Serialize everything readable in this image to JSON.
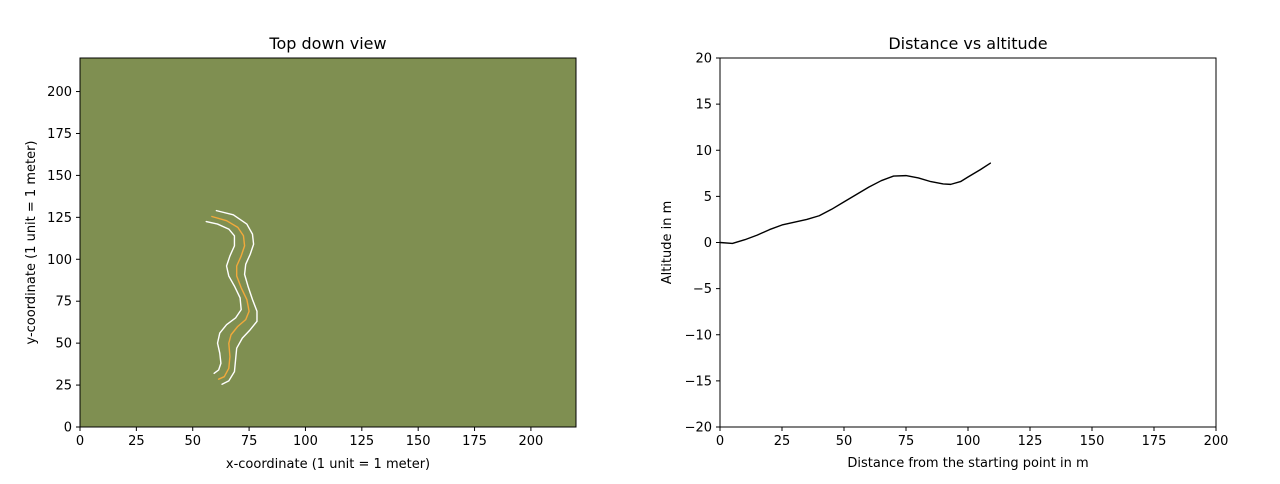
{
  "chart_data": [
    {
      "type": "line",
      "title": "Top down view",
      "xlabel": "x-coordinate (1 unit = 1 meter)",
      "ylabel": "y-coordinate (1 unit = 1 meter)",
      "xlim": [
        0,
        220
      ],
      "ylim": [
        0,
        220
      ],
      "xticks": [
        0,
        25,
        50,
        75,
        100,
        125,
        150,
        175,
        200
      ],
      "yticks": [
        0,
        25,
        50,
        75,
        100,
        125,
        150,
        175,
        200
      ],
      "background_color": "#7f8f51",
      "grid": false,
      "series": [
        {
          "color": "#ffffff",
          "points": [
            [
              59.5,
              32
            ],
            [
              61.5,
              34
            ],
            [
              62.5,
              38
            ],
            [
              62,
              44
            ],
            [
              61,
              50
            ],
            [
              62,
              56
            ],
            [
              65,
              61
            ],
            [
              69,
              65
            ],
            [
              71.5,
              70
            ],
            [
              71,
              77
            ],
            [
              68.5,
              84
            ],
            [
              66,
              90
            ],
            [
              65,
              96
            ],
            [
              66.5,
              102
            ],
            [
              68.5,
              108
            ],
            [
              68.5,
              114
            ],
            [
              66,
              118
            ],
            [
              61,
              121
            ],
            [
              56,
              122.5
            ]
          ]
        },
        {
          "color": "#f2a93b",
          "points": [
            [
              61.5,
              28.5
            ],
            [
              64,
              30
            ],
            [
              66,
              35
            ],
            [
              66.5,
              42
            ],
            [
              66,
              50
            ],
            [
              67,
              55
            ],
            [
              70,
              60
            ],
            [
              73.5,
              64
            ],
            [
              75,
              69
            ],
            [
              74,
              76
            ],
            [
              71.5,
              83
            ],
            [
              69.5,
              90
            ],
            [
              69.5,
              96
            ],
            [
              71.5,
              102
            ],
            [
              73,
              108
            ],
            [
              72.5,
              114
            ],
            [
              70,
              119
            ],
            [
              65,
              123
            ],
            [
              58.5,
              125.5
            ]
          ]
        },
        {
          "color": "#ffffff",
          "points": [
            [
              63,
              25.5
            ],
            [
              66,
              27.5
            ],
            [
              68.5,
              33
            ],
            [
              69,
              40
            ],
            [
              69.5,
              47
            ],
            [
              72,
              53
            ],
            [
              75.5,
              58
            ],
            [
              78.5,
              63
            ],
            [
              78.5,
              69
            ],
            [
              76.5,
              76
            ],
            [
              74.5,
              84
            ],
            [
              73,
              91
            ],
            [
              73.5,
              97
            ],
            [
              75.5,
              103
            ],
            [
              77,
              109
            ],
            [
              76.5,
              115
            ],
            [
              74,
              121
            ],
            [
              68,
              126.5
            ],
            [
              60.5,
              129
            ]
          ]
        }
      ]
    },
    {
      "type": "line",
      "title": "Distance vs altitude",
      "xlabel": "Distance from the starting point in m",
      "ylabel": "Altitude in m",
      "xlim": [
        0,
        200
      ],
      "ylim": [
        -20,
        20
      ],
      "xticks": [
        0,
        25,
        50,
        75,
        100,
        125,
        150,
        175,
        200
      ],
      "yticks": [
        -20,
        -15,
        -10,
        -5,
        0,
        5,
        10,
        15,
        20
      ],
      "grid": false,
      "series": [
        {
          "color": "#000000",
          "points": [
            [
              0,
              0
            ],
            [
              5,
              -0.1
            ],
            [
              10,
              0.3
            ],
            [
              15,
              0.8
            ],
            [
              20,
              1.4
            ],
            [
              25,
              1.9
            ],
            [
              30,
              2.2
            ],
            [
              35,
              2.5
            ],
            [
              40,
              2.9
            ],
            [
              45,
              3.6
            ],
            [
              50,
              4.4
            ],
            [
              55,
              5.2
            ],
            [
              60,
              6
            ],
            [
              65,
              6.7
            ],
            [
              70,
              7.2
            ],
            [
              75,
              7.25
            ],
            [
              80,
              7
            ],
            [
              85,
              6.6
            ],
            [
              90,
              6.35
            ],
            [
              93,
              6.3
            ],
            [
              97,
              6.6
            ],
            [
              100,
              7.1
            ],
            [
              105,
              7.9
            ],
            [
              109,
              8.6
            ]
          ]
        }
      ]
    }
  ]
}
